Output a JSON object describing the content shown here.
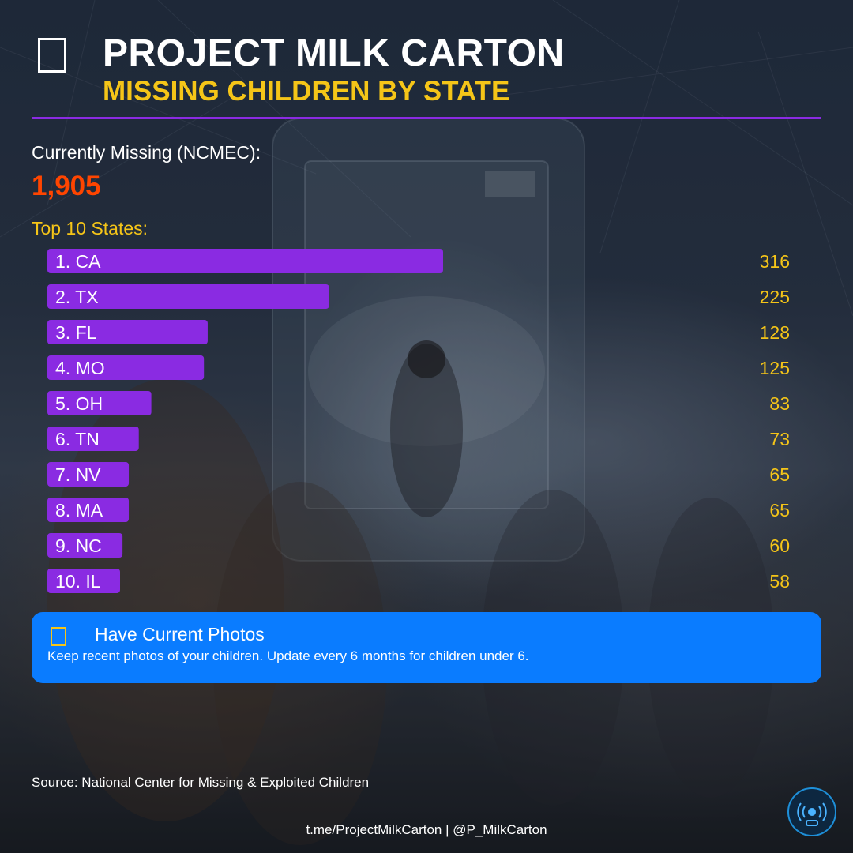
{
  "header": {
    "title": "PROJECT MILK CARTON",
    "subtitle": "MISSING CHILDREN BY STATE"
  },
  "stats": {
    "missing_label": "Currently Missing (NCMEC):",
    "missing_value": "1,905",
    "top_label": "Top 10 States:"
  },
  "chart_data": {
    "type": "bar",
    "orientation": "horizontal",
    "title": "Top 10 States:",
    "categories": [
      "1. CA",
      "2. TX",
      "3. FL",
      "4. MO",
      "5. OH",
      "6. TN",
      "7. NV",
      "8. MA",
      "9. NC",
      "10. IL"
    ],
    "values": [
      316,
      225,
      128,
      125,
      83,
      73,
      65,
      65,
      60,
      58
    ],
    "xlim": [
      0,
      316
    ],
    "grid": false,
    "bar_color": "#8a2be2",
    "value_color": "#f5c518"
  },
  "tip": {
    "title": "Have Current Photos",
    "text": "Keep recent photos of your children. Update every 6 months for children under 6."
  },
  "source": "Source: National Center for Missing & Exploited Children",
  "footer": "t.me/ProjectMilkCarton | @P_MilkCarton",
  "icons": {
    "header": "milk-carton-icon",
    "tip": "photo-icon",
    "badge": "broadcast-icon"
  },
  "colors": {
    "accent_purple": "#8a2be2",
    "accent_yellow": "#f5c518",
    "highlight_red": "#ff4500",
    "card_blue": "#0a7cff"
  }
}
